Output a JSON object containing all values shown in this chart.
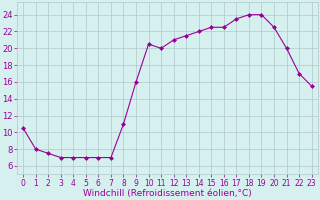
{
  "x": [
    0,
    1,
    2,
    3,
    4,
    5,
    6,
    7,
    8,
    9,
    10,
    11,
    12,
    13,
    14,
    15,
    16,
    17,
    18,
    19,
    20,
    21,
    22,
    23
  ],
  "y": [
    10.5,
    8.0,
    7.5,
    7.0,
    7.0,
    7.0,
    7.0,
    7.0,
    11.0,
    16.0,
    20.5,
    20.0,
    21.0,
    21.5,
    22.0,
    22.5,
    22.5,
    23.5,
    24.0,
    24.0,
    22.5,
    20.0,
    17.0,
    15.5
  ],
  "line_color": "#990099",
  "marker": "D",
  "marker_size": 2,
  "bg_color": "#d6f0ef",
  "grid_color": "#b0c8c8",
  "xlabel": "Windchill (Refroidissement éolien,°C)",
  "ylabel_ticks": [
    6,
    8,
    10,
    12,
    14,
    16,
    18,
    20,
    22,
    24
  ],
  "xlim": [
    -0.5,
    23.5
  ],
  "ylim": [
    5.0,
    25.5
  ],
  "label_color": "#990099",
  "tick_color": "#990099",
  "xlabel_fontsize": 6.5,
  "ytick_fontsize": 6,
  "xtick_fontsize": 5.5
}
